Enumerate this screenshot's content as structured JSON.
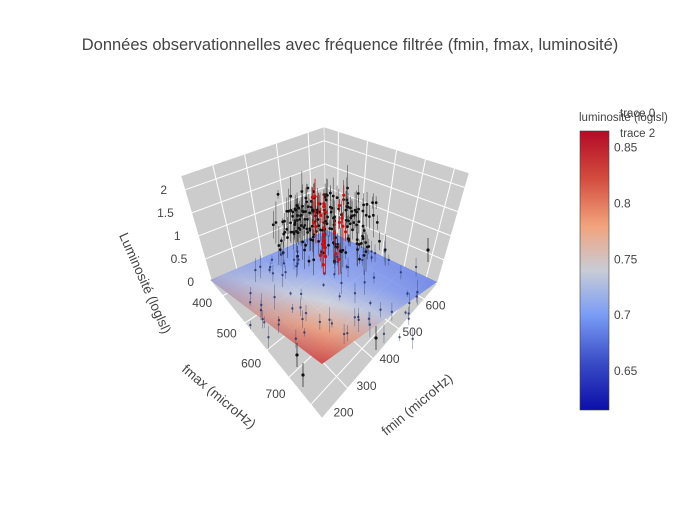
{
  "chart_data": {
    "type": "scatter",
    "title": "Données observationnelles avec fréquence filtrée (fmin, fmax, luminosité)",
    "axes": {
      "x": {
        "label": "fmin (microHz)",
        "ticks": [
          200,
          300,
          400,
          500,
          600
        ],
        "range": [
          150,
          650
        ]
      },
      "y": {
        "label": "fmax (microHz)",
        "ticks": [
          400,
          500,
          600,
          700
        ],
        "range": [
          350,
          800
        ]
      },
      "z": {
        "label": "Luminosité (loglsl)",
        "ticks": [
          0,
          0.5,
          1,
          1.5,
          2
        ],
        "range": [
          0,
          2.3
        ]
      }
    },
    "legend": {
      "placement": "top-right",
      "entries": [
        "trace 0",
        "trace 2"
      ]
    },
    "colorbar": {
      "title": "luminosité (loglsl)",
      "ticks": [
        0.65,
        0.7,
        0.75,
        0.8,
        0.85
      ],
      "range": [
        0.615,
        0.865
      ],
      "colors": [
        "#0c0fa8",
        "#3a4cc6",
        "#7a9cf5",
        "#c8ccd6",
        "#f2a37c",
        "#d24c3e",
        "#b40b27"
      ]
    },
    "series": [
      {
        "name": "trace 0",
        "kind": "scatter3d",
        "color": "#111111"
      },
      {
        "name": "trace 2",
        "kind": "scatter3d",
        "color": "#cc1111"
      },
      {
        "kind": "surface",
        "colorscale": "coolwarm"
      }
    ]
  }
}
